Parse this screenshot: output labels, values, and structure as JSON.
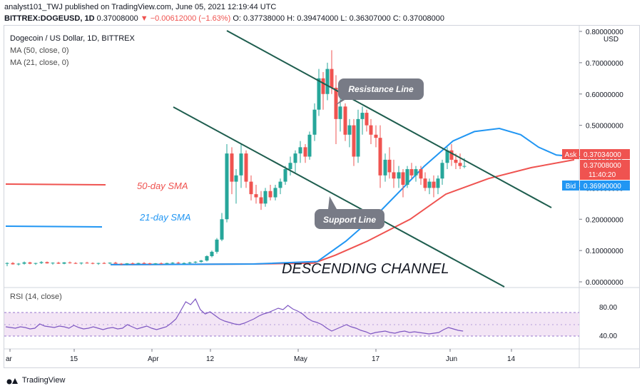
{
  "header": {
    "publisher": "analyst101_TWJ published on TradingView.com, June 05, 2021 12:19:44 UTC",
    "symbol": "BITTREX:DOGEUSD, 1D",
    "last": "0.37008000",
    "change": "▼ −0.00612000 (−1.63%)",
    "o": "O: 0.37738000",
    "h": "H: 0.39474000",
    "l": "L: 0.36307000",
    "c": "C: 0.37008000"
  },
  "legend": {
    "title": "Dogecoin / US Dollar, 1D, BITTREX",
    "ma50": "MA (50, close, 0)",
    "ma21": "MA (21, close, 0)",
    "rsi": "RSI (14, close)"
  },
  "annotations": {
    "resistance": "Resistance Line",
    "support": "Support Line",
    "sma50": "50-day SMA",
    "sma21": "21-day SMA",
    "channel": "DESCENDING CHANNEL"
  },
  "price_axis": {
    "currency": "USD",
    "ticks": [
      "0.80000000",
      "0.70000000",
      "0.60000000",
      "0.50000000",
      "0.40000000",
      "0.30000000",
      "0.20000000",
      "0.10000000",
      "0.00000000"
    ],
    "ask_label": "Ask",
    "ask": "0.37034000",
    "last": "0.37008000",
    "countdown": "11:40:20",
    "bid_label": "Bid",
    "bid": "0.36990000"
  },
  "rsi_axis": {
    "ticks": [
      "80.00",
      "40.00"
    ]
  },
  "time_axis": {
    "ticks": [
      "ar",
      "15",
      "Apr",
      "12",
      "May",
      "17",
      "Jun",
      "14"
    ]
  },
  "brand": "TradingView",
  "colors": {
    "up": "#26a69a",
    "down": "#ef5350",
    "ma50": "#ef5350",
    "ma21": "#2196f3",
    "channel": "#1e5d4e",
    "rsi": "#7e57c2",
    "rsi_band": "#f3e5f5"
  },
  "chart_data": {
    "type": "candlestick",
    "title": "Dogecoin / US Dollar, 1D, BITTREX",
    "ylim": [
      0,
      0.8
    ],
    "series": [
      {
        "name": "MA (50, close, 0)",
        "points": [
          [
            0,
            0.055
          ],
          [
            200,
            0.057
          ],
          [
            285,
            0.06
          ],
          [
            315,
            0.085
          ],
          [
            360,
            0.13
          ],
          [
            420,
            0.2
          ],
          [
            470,
            0.28
          ],
          [
            530,
            0.33
          ],
          [
            590,
            0.365
          ],
          [
            650,
            0.39
          ]
        ]
      },
      {
        "name": "MA (21, close, 0)",
        "points": [
          [
            0,
            0.055
          ],
          [
            200,
            0.057
          ],
          [
            290,
            0.065
          ],
          [
            330,
            0.13
          ],
          [
            380,
            0.23
          ],
          [
            440,
            0.37
          ],
          [
            480,
            0.45
          ],
          [
            510,
            0.48
          ],
          [
            545,
            0.49
          ],
          [
            575,
            0.47
          ],
          [
            600,
            0.43
          ],
          [
            625,
            0.405
          ],
          [
            650,
            0.4
          ]
        ]
      }
    ],
    "rsi": {
      "name": "RSI (14, close)",
      "ylim": [
        20,
        100
      ],
      "upper": 70,
      "lower": 30,
      "mid": 50
    }
  }
}
